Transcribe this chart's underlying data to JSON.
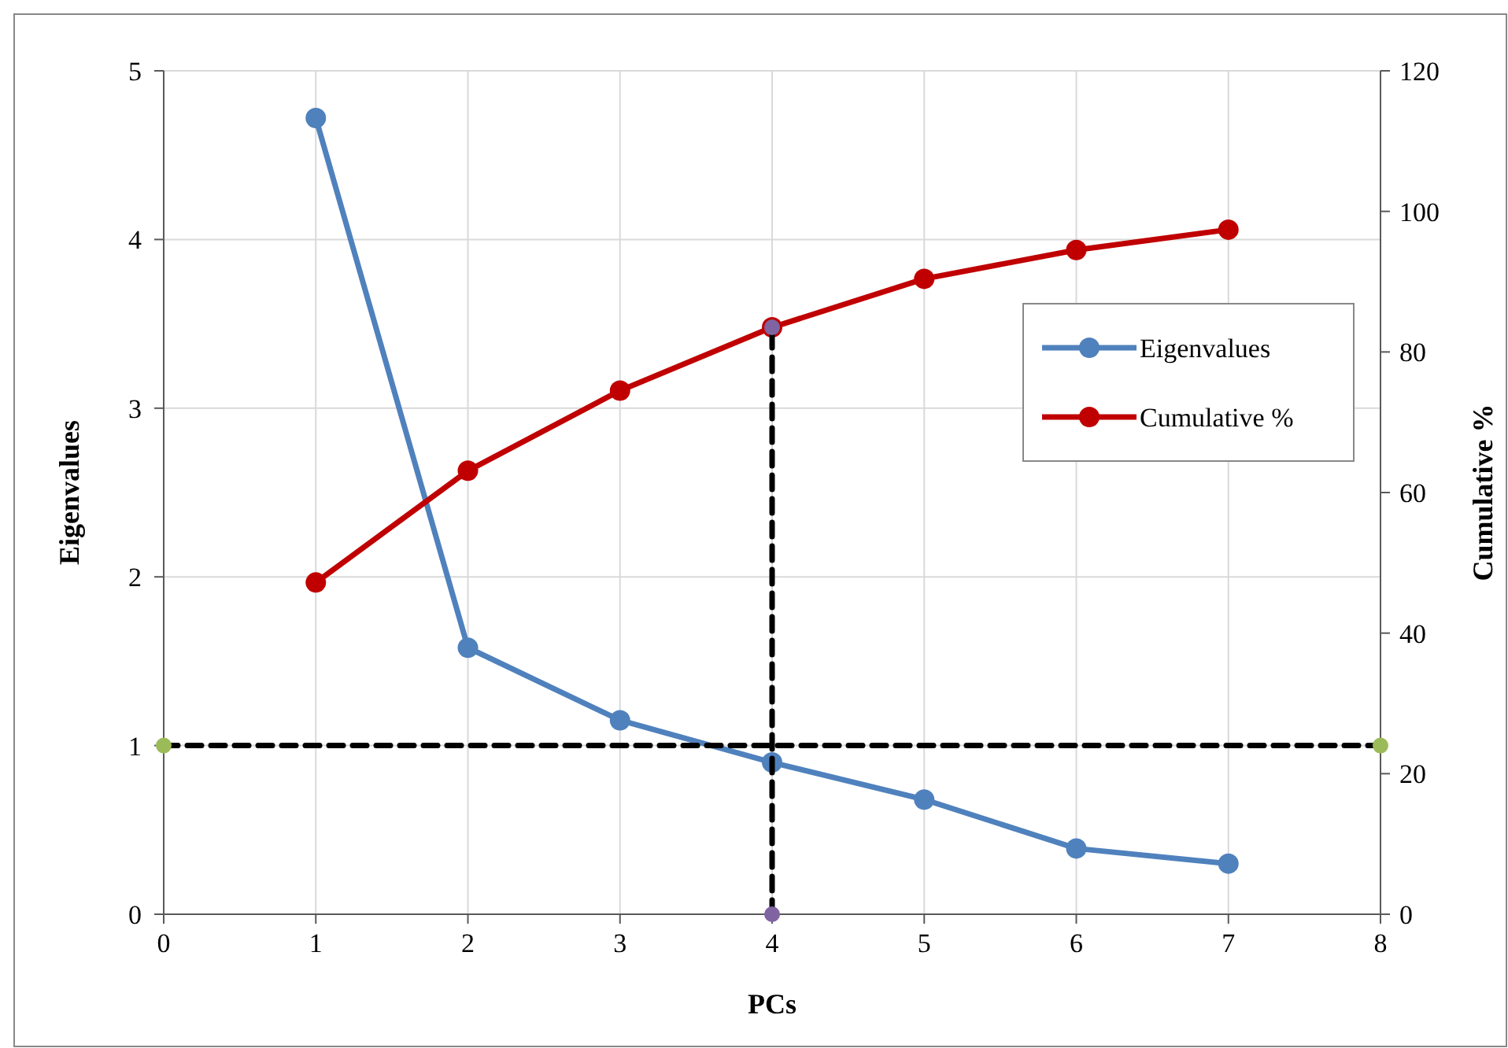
{
  "chart_data": {
    "type": "line",
    "xlabel": "PCs",
    "ylabel": "Eigenvalues",
    "y2label": "Cumulative %",
    "x": [
      1,
      2,
      3,
      4,
      5,
      6,
      7
    ],
    "xlim": [
      0,
      8
    ],
    "xticks": [
      0,
      1,
      2,
      3,
      4,
      5,
      6,
      7,
      8
    ],
    "ylim": [
      0,
      5
    ],
    "yticks": [
      0,
      1,
      2,
      3,
      4,
      5
    ],
    "y2lim": [
      0,
      120
    ],
    "y2ticks": [
      0,
      20,
      40,
      60,
      80,
      100,
      120
    ],
    "grid": true,
    "legend": "right",
    "marker": "circle",
    "line_style": "solid",
    "series": [
      {
        "name": "Eigenvalues",
        "color": "#4f81bd",
        "values": [
          4.72,
          1.58,
          1.15,
          0.9,
          0.68,
          0.39,
          0.3
        ]
      },
      {
        "name": "Cumulative %",
        "color": "#c00000",
        "axis": "y2",
        "values": [
          47.2,
          63.1,
          74.5,
          83.5,
          90.4,
          94.5,
          97.4
        ]
      },
      {
        "type": "line",
        "color": "#000000",
        "x": [
          0,
          8
        ],
        "values": [
          1,
          1
        ],
        "line_style": "dashed",
        "marker": "none"
      },
      {
        "type": "line",
        "color": "#000000",
        "axis": "y2",
        "x": [
          4,
          4
        ],
        "values": [
          0,
          83.5
        ],
        "line_style": "dashed",
        "marker": "none"
      },
      {
        "type": "scatter",
        "color": "#9bbb59",
        "x": [
          0,
          8
        ],
        "values": [
          1,
          1
        ]
      },
      {
        "type": "scatter",
        "color": "#8064a2",
        "axis": "y2",
        "x": [
          4,
          4
        ],
        "values": [
          0,
          83.5
        ]
      }
    ]
  }
}
